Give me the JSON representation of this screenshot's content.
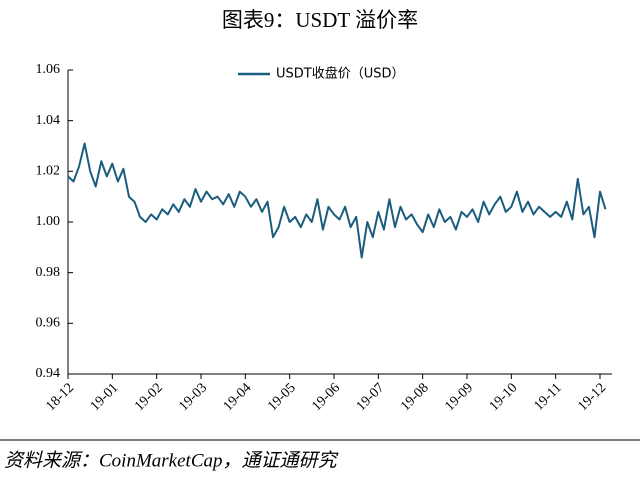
{
  "chart_data": {
    "type": "line",
    "title": "图表9：USDT 溢价率",
    "source": "资料来源：CoinMarketCap，通证通研究",
    "categories": [
      "18-12",
      null,
      null,
      null,
      null,
      null,
      null,
      null,
      "19-01",
      null,
      null,
      null,
      null,
      null,
      null,
      null,
      "19-02",
      null,
      null,
      null,
      null,
      null,
      null,
      null,
      "19-03",
      null,
      null,
      null,
      null,
      null,
      null,
      null,
      "19-04",
      null,
      null,
      null,
      null,
      null,
      null,
      null,
      "19-05",
      null,
      null,
      null,
      null,
      null,
      null,
      null,
      "19-06",
      null,
      null,
      null,
      null,
      null,
      null,
      null,
      "19-07",
      null,
      null,
      null,
      null,
      null,
      null,
      null,
      "19-08",
      null,
      null,
      null,
      null,
      null,
      null,
      null,
      "19-09",
      null,
      null,
      null,
      null,
      null,
      null,
      null,
      "19-10",
      null,
      null,
      null,
      null,
      null,
      null,
      null,
      "19-11",
      null,
      null,
      null,
      null,
      null,
      null,
      null,
      "19-12",
      null
    ],
    "series": [
      {
        "name": "USDT收盘价（USD）",
        "color": "#1b5d7e",
        "values": [
          1.018,
          1.016,
          1.022,
          1.031,
          1.02,
          1.014,
          1.024,
          1.018,
          1.023,
          1.016,
          1.021,
          1.01,
          1.008,
          1.002,
          1.0,
          1.003,
          1.001,
          1.005,
          1.003,
          1.007,
          1.004,
          1.009,
          1.006,
          1.013,
          1.008,
          1.012,
          1.009,
          1.01,
          1.007,
          1.011,
          1.006,
          1.012,
          1.01,
          1.006,
          1.009,
          1.004,
          1.008,
          0.994,
          0.998,
          1.006,
          1.0,
          1.002,
          0.998,
          1.003,
          1.0,
          1.009,
          0.997,
          1.006,
          1.003,
          1.001,
          1.006,
          0.998,
          1.002,
          0.986,
          1.0,
          0.994,
          1.004,
          0.997,
          1.009,
          0.998,
          1.006,
          1.001,
          1.003,
          0.999,
          0.996,
          1.003,
          0.998,
          1.005,
          1.0,
          1.002,
          0.997,
          1.004,
          1.002,
          1.005,
          1.0,
          1.008,
          1.003,
          1.007,
          1.01,
          1.004,
          1.006,
          1.012,
          1.004,
          1.008,
          1.003,
          1.006,
          1.004,
          1.002,
          1.004,
          1.002,
          1.008,
          1.001,
          1.017,
          1.003,
          1.006,
          0.994,
          1.012,
          1.005
        ]
      }
    ],
    "ylim": [
      0.94,
      1.06
    ],
    "yticks": [
      0.94,
      0.96,
      0.98,
      {
        "value": 1,
        "label": "1.00"
      },
      1.02,
      1.04,
      1.06
    ],
    "legend": "top"
  }
}
